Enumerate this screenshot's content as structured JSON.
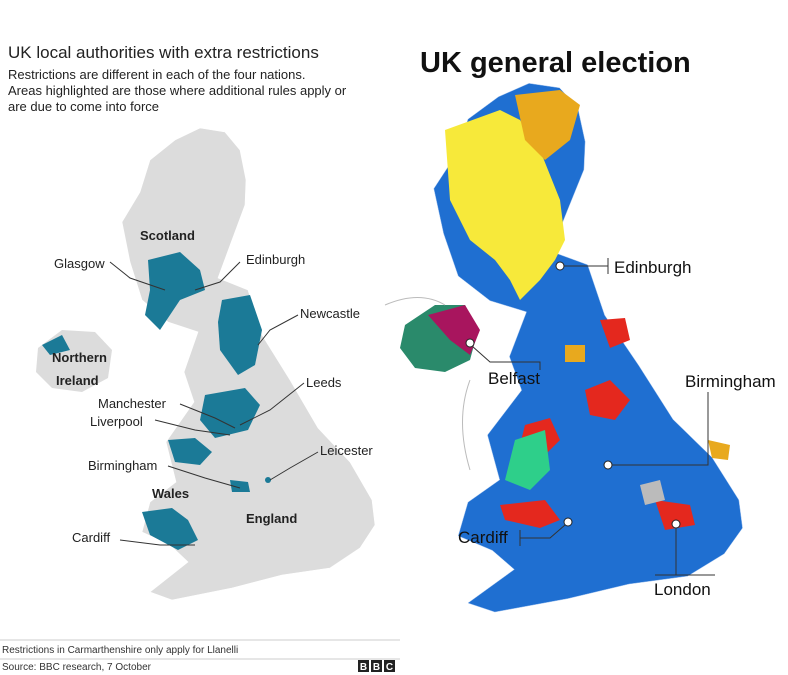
{
  "left": {
    "title": "UK local authorities with extra restrictions",
    "subtitle": [
      "Restrictions are different in each of the four nations.",
      "Areas highlighted are those where additional rules apply or",
      "are due to come into force"
    ],
    "labels": {
      "scotland": "Scotland",
      "glasgow": "Glasgow",
      "edinburgh": "Edinburgh",
      "newcastle": "Newcastle",
      "northern_ireland": [
        "Northern",
        "Ireland"
      ],
      "leeds": "Leeds",
      "manchester": "Manchester",
      "liverpool": "Liverpool",
      "leicester": "Leicester",
      "birmingham": "Birmingham",
      "wales": "Wales",
      "england": "England",
      "cardiff": "Cardiff"
    },
    "footnote": "Restrictions in Carmarthenshire only apply for Llanelli",
    "source": "Source: BBC research, 7 October",
    "logo": [
      "B",
      "B",
      "C"
    ]
  },
  "right": {
    "title": "UK general election",
    "labels": {
      "edinburgh": "Edinburgh",
      "belfast": "Belfast",
      "birmingham": "Birmingham",
      "cardiff": "Cardiff",
      "london": "London"
    }
  }
}
